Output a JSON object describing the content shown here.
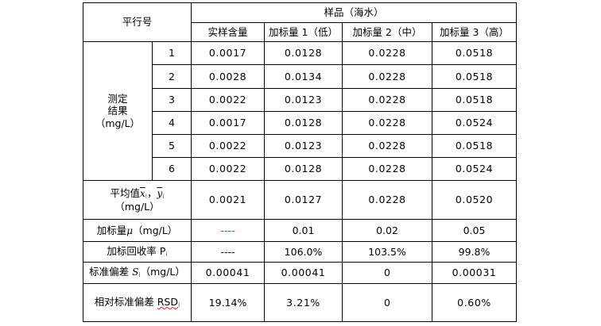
{
  "table": {
    "hdr_parallel": "平行号",
    "hdr_sample": "样品（海水）",
    "col_actual": "实样含量",
    "col_low": "加标量 1（低）",
    "col_mid": "加标量 2（中）",
    "col_high": "加标量 3（高）",
    "measure_line1": "测定",
    "measure_line2": "结果",
    "measure_line3": "（mg/L）",
    "rows": [
      {
        "idx": "1",
        "a": "0.0017",
        "b": "0.0128",
        "c": "0.0228",
        "d": "0.0518"
      },
      {
        "idx": "2",
        "a": "0.0028",
        "b": "0.0134",
        "c": "0.0228",
        "d": "0.0518"
      },
      {
        "idx": "3",
        "a": "0.0022",
        "b": "0.0123",
        "c": "0.0228",
        "d": "0.0518"
      },
      {
        "idx": "4",
        "a": "0.0017",
        "b": "0.0128",
        "c": "0.0228",
        "d": "0.0524"
      },
      {
        "idx": "5",
        "a": "0.0022",
        "b": "0.0123",
        "c": "0.0228",
        "d": "0.0518"
      },
      {
        "idx": "6",
        "a": "0.0022",
        "b": "0.0128",
        "c": "0.0228",
        "d": "0.0524"
      }
    ],
    "avg_label": "平均值",
    "avg_sym_x": "x",
    "avg_sub_i": "i",
    "avg_comma": "，",
    "avg_sym_y": "y",
    "avg_sub_i2": "i",
    "avg_unit": "（mg/L）",
    "avg_a": "0.0021",
    "avg_b": "0.0127",
    "avg_c": "0.0228",
    "avg_d": "0.0520",
    "add_label": "加标量",
    "add_sym": "μ",
    "add_unit": "（mg/L）",
    "add_a": "----",
    "add_b": "0.01",
    "add_c": "0.02",
    "add_d": "0.05",
    "rec_label": "加标回收率 P",
    "rec_sub": "i",
    "rec_a": "----",
    "rec_b": "106.0%",
    "rec_c": "103.5%",
    "rec_d": "99.8%",
    "sd_label": "标准偏差 ",
    "sd_sym": "S",
    "sd_sub": "i",
    "sd_unit": "（mg/L）",
    "sd_a": "0.00041",
    "sd_b": "0.00041",
    "sd_c": "0",
    "sd_d": "0.00031",
    "rsd_label": "相对标准偏差 ",
    "rsd_sym": "RSD",
    "rsd_sub": "i",
    "rsd_a": "19.14%",
    "rsd_b": "3.21%",
    "rsd_c": "0",
    "rsd_d": "0.60%"
  },
  "colors": {
    "dash_red": "#e02020",
    "border": "#000000"
  }
}
